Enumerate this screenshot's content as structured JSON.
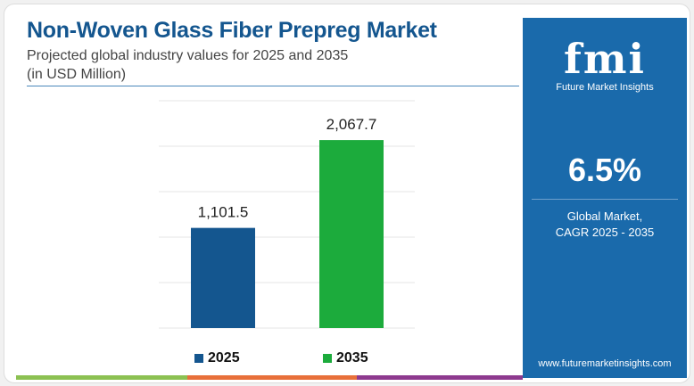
{
  "header": {
    "title": "Non-Woven Glass Fiber Prepreg Market",
    "subtitle": "Projected global industry values for 2025 and 2035",
    "unit": "(in USD Million)"
  },
  "panel": {
    "logo_text": "fmi",
    "brand": "Future Market Insights",
    "cagr": "6.5%",
    "cagr_label_1": "Global Market,",
    "cagr_label_2": "CAGR 2025 - 2035",
    "website": "www.futuremarketinsights.com"
  },
  "chart_data": {
    "type": "bar",
    "categories": [
      "2025",
      "2035"
    ],
    "values": [
      1101.5,
      2067.7
    ],
    "labels": [
      "1,101.5",
      "2,067.7"
    ],
    "colors": [
      "#14568f",
      "#1cab3c"
    ],
    "ylim": [
      0,
      2500
    ],
    "grid": true,
    "legend": "bottom",
    "title": "",
    "xlabel": "",
    "ylabel": ""
  },
  "colors": {
    "brand_blue": "#1a6aab",
    "footer": [
      "#8cc152",
      "#e8703a",
      "#8e3a8f"
    ]
  }
}
